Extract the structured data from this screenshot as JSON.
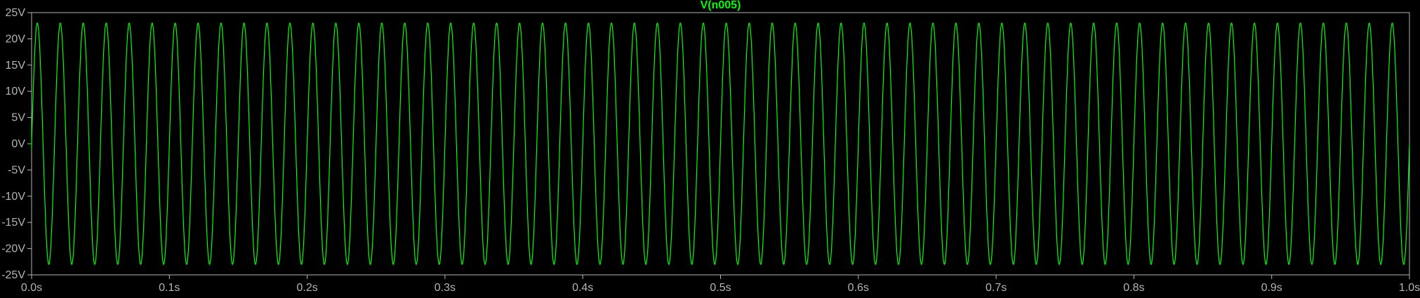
{
  "chart_data": {
    "type": "line",
    "title": "V(n005)",
    "xlabel": "",
    "ylabel": "",
    "x_ticks": [
      "0.0s",
      "0.1s",
      "0.2s",
      "0.3s",
      "0.4s",
      "0.5s",
      "0.6s",
      "0.7s",
      "0.8s",
      "0.9s",
      "1.0s"
    ],
    "y_ticks": [
      "25V",
      "20V",
      "15V",
      "10V",
      "5V",
      "0V",
      "-5V",
      "-10V",
      "-15V",
      "-20V",
      "-25V"
    ],
    "xlim": [
      0,
      1.0
    ],
    "ylim": [
      -25,
      25
    ],
    "grid": true,
    "series": [
      {
        "name": "V(n005)",
        "function": "sine",
        "amplitude": 23,
        "frequency_hz": 60,
        "phase_deg": 0,
        "start_value": -1,
        "color": "#00ff00"
      }
    ]
  },
  "colors": {
    "background": "#000000",
    "trace": "#00ff00",
    "title": "#00ff00",
    "axis": "#b4b4b4",
    "grid": "#3a3a3a"
  }
}
